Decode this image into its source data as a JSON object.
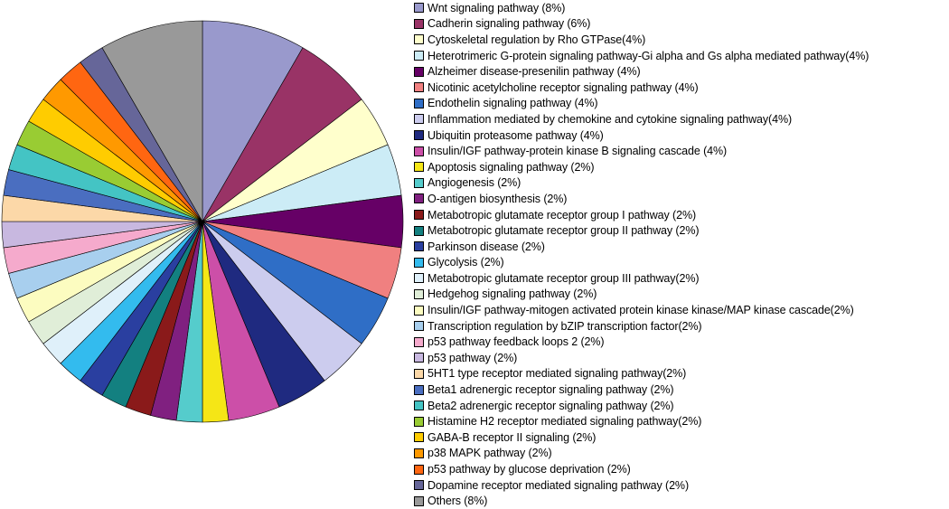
{
  "chart_data": {
    "type": "pie",
    "title": "",
    "start": "12 o'clock, clockwise",
    "slices": [
      {
        "label": "Wnt signaling pathway (8%)",
        "value": 8,
        "color": "#9999cc"
      },
      {
        "label": "Cadherin signaling pathway (6%)",
        "value": 6,
        "color": "#993366"
      },
      {
        "label": "Cytoskeletal regulation by Rho GTPase(4%)",
        "value": 4,
        "color": "#ffffcc"
      },
      {
        "label": "Heterotrimeric G-protein signaling pathway-Gi alpha and Gs alpha mediated pathway(4%)",
        "value": 4,
        "color": "#ccecf6"
      },
      {
        "label": "Alzheimer disease-presenilin pathway (4%)",
        "value": 4,
        "color": "#660066"
      },
      {
        "label": "Nicotinic acetylcholine receptor signaling pathway (4%)",
        "value": 4,
        "color": "#f08080"
      },
      {
        "label": "Endothelin signaling pathway (4%)",
        "value": 4,
        "color": "#2f6ec6"
      },
      {
        "label": "Inflammation mediated by chemokine and cytokine signaling pathway(4%)",
        "value": 4,
        "color": "#ccccee"
      },
      {
        "label": "Ubiquitin proteasome pathway (4%)",
        "value": 4,
        "color": "#1f2a80"
      },
      {
        "label": "Insulin/IGF pathway-protein kinase B signaling cascade (4%)",
        "value": 4,
        "color": "#cc4fa8"
      },
      {
        "label": "Apoptosis signaling pathway (2%)",
        "value": 2,
        "color": "#f5e616"
      },
      {
        "label": "Angiogenesis (2%)",
        "value": 2,
        "color": "#55cccc"
      },
      {
        "label": "O-antigen biosynthesis (2%)",
        "value": 2,
        "color": "#802080"
      },
      {
        "label": "Metabotropic glutamate receptor group I pathway (2%)",
        "value": 2,
        "color": "#8a1a1a"
      },
      {
        "label": "Metabotropic glutamate receptor group II pathway (2%)",
        "value": 2,
        "color": "#138080"
      },
      {
        "label": "Parkinson disease (2%)",
        "value": 2,
        "color": "#2a3fa0"
      },
      {
        "label": "Glycolysis (2%)",
        "value": 2,
        "color": "#33bbee"
      },
      {
        "label": "Metabotropic glutamate receptor group III pathway(2%)",
        "value": 2,
        "color": "#dff0fa"
      },
      {
        "label": "Hedgehog signaling pathway (2%)",
        "value": 2,
        "color": "#e0eed8"
      },
      {
        "label": "Insulin/IGF pathway-mitogen activated protein kinase kinase/MAP kinase cascade(2%)",
        "value": 2,
        "color": "#fcfcc0"
      },
      {
        "label": "Transcription regulation by bZIP transcription factor(2%)",
        "value": 2,
        "color": "#a8cfee"
      },
      {
        "label": "p53 pathway feedback loops 2 (2%)",
        "value": 2,
        "color": "#f5aacc"
      },
      {
        "label": "p53 pathway (2%)",
        "value": 2,
        "color": "#c8b8e0"
      },
      {
        "label": "5HT1 type receptor mediated signaling pathway(2%)",
        "value": 2,
        "color": "#fcd8a8"
      },
      {
        "label": "Beta1 adrenergic receptor signaling pathway (2%)",
        "value": 2,
        "color": "#4a6ec0"
      },
      {
        "label": "Beta2 adrenergic receptor signaling pathway (2%)",
        "value": 2,
        "color": "#44c4c4"
      },
      {
        "label": "Histamine H2 receptor mediated signaling pathway(2%)",
        "value": 2,
        "color": "#99cc33"
      },
      {
        "label": "GABA-B receptor II signaling (2%)",
        "value": 2,
        "color": "#ffcc00"
      },
      {
        "label": "p38 MAPK pathway (2%)",
        "value": 2,
        "color": "#ff9900"
      },
      {
        "label": "p53 pathway by glucose deprivation (2%)",
        "value": 2,
        "color": "#ff6611"
      },
      {
        "label": "Dopamine receptor mediated signaling pathway (2%)",
        "value": 2,
        "color": "#666699"
      },
      {
        "label": "Others (8%)",
        "value": 8,
        "color": "#999999"
      }
    ]
  }
}
